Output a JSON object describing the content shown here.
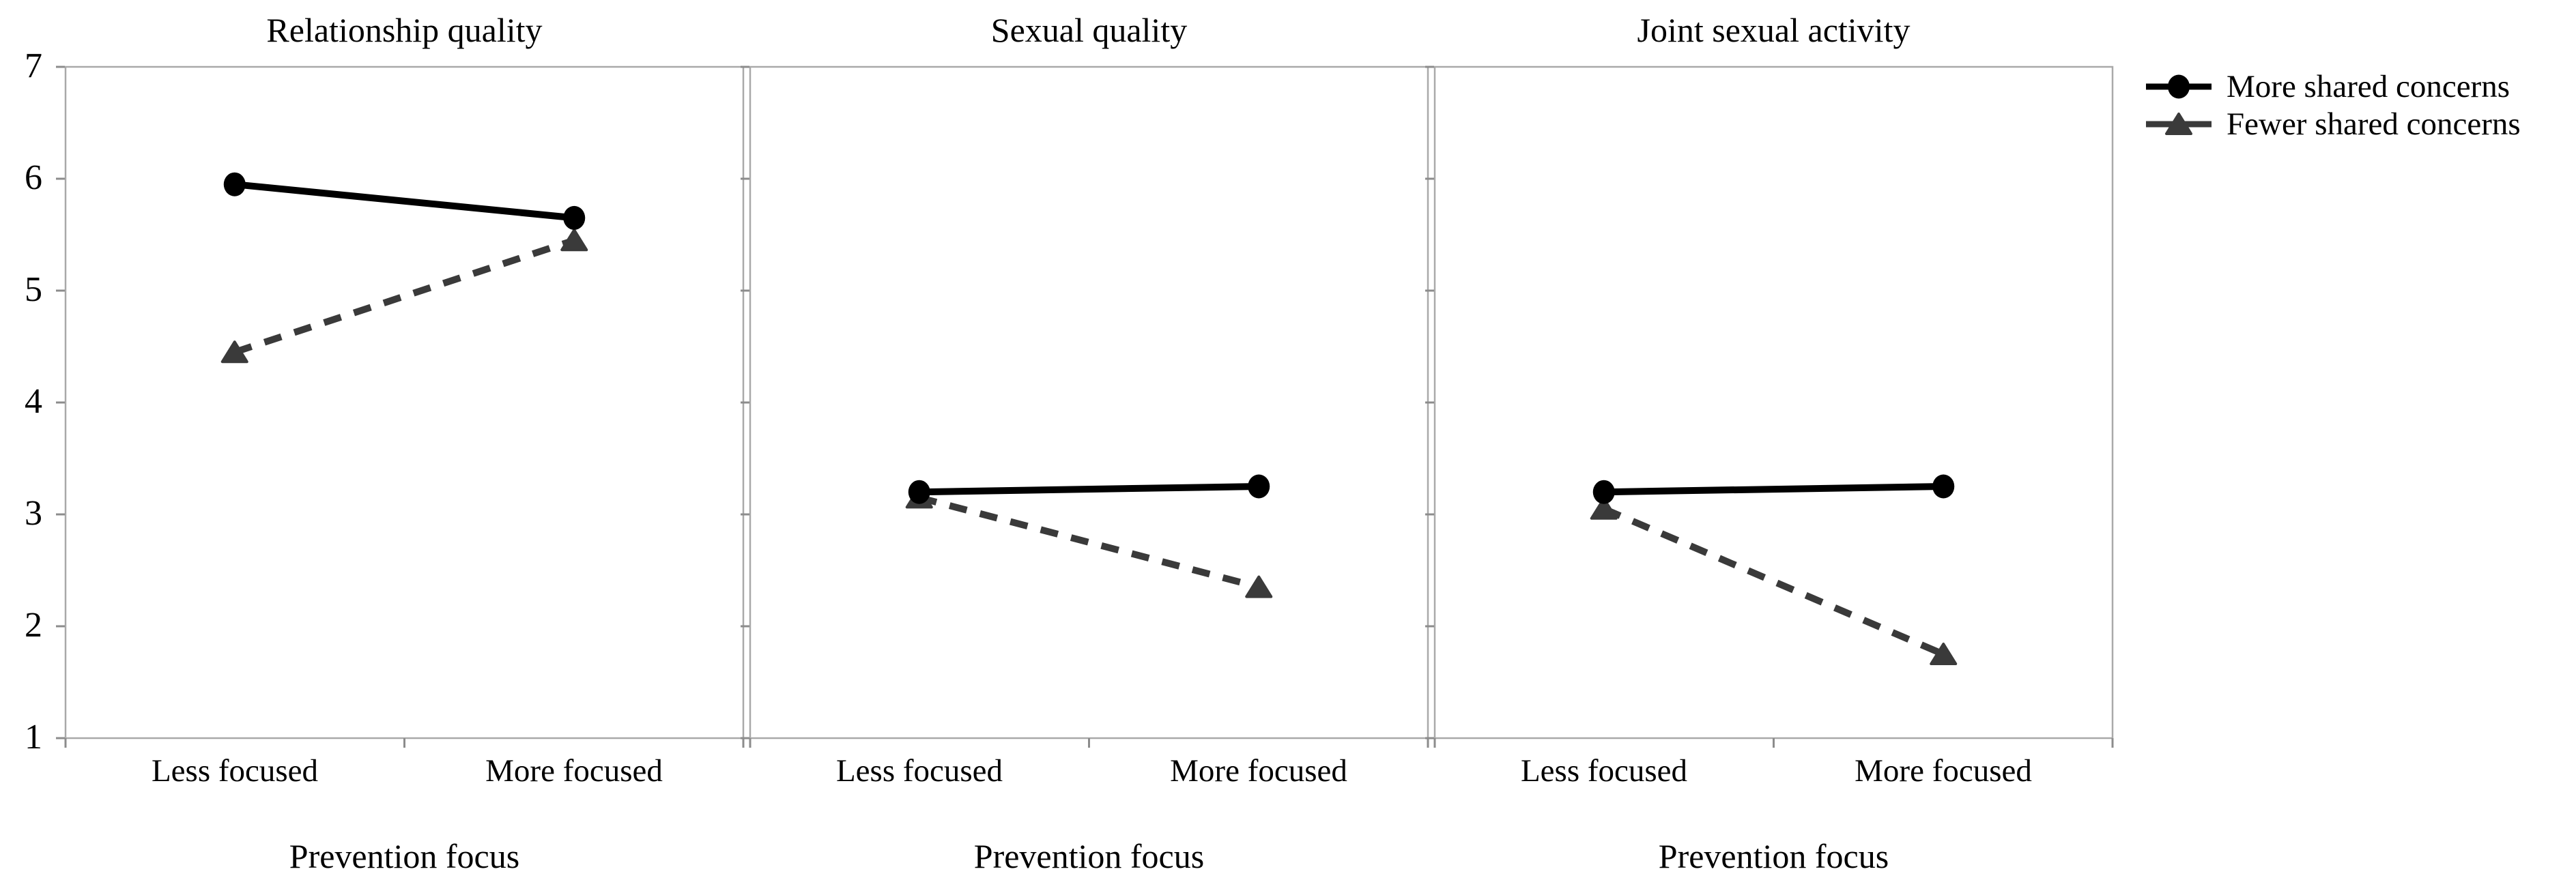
{
  "figure": {
    "y_axis": {
      "tick_labels": [
        "7",
        "6",
        "5",
        "4",
        "3",
        "2",
        "1"
      ],
      "min": 1,
      "max": 7
    },
    "legend": {
      "position": "top-right",
      "items": [
        {
          "label": "More shared concerns",
          "marker": "circle",
          "line": "solid"
        },
        {
          "label": "Fewer shared concerns",
          "marker": "triangle",
          "line": "dashed"
        }
      ]
    },
    "colors": {
      "series_primary": "#000000",
      "series_secondary": "#3a3a3a",
      "panel_border": "#a9a9a9",
      "tick": "#8c8c8c",
      "background": "#ffffff"
    }
  },
  "chart_data": [
    {
      "type": "line",
      "title": "Relationship quality",
      "x_categories": [
        "Less focused",
        "More focused"
      ],
      "xlabel": "Prevention focus",
      "ylim": [
        1,
        7
      ],
      "yticks": [
        1,
        2,
        3,
        4,
        5,
        6,
        7
      ],
      "grid": false,
      "series": [
        {
          "name": "More shared concerns",
          "marker": "circle",
          "line": "solid",
          "values": [
            5.95,
            5.65
          ]
        },
        {
          "name": "Fewer shared concerns",
          "marker": "triangle",
          "line": "dashed",
          "values": [
            4.45,
            5.45
          ]
        }
      ]
    },
    {
      "type": "line",
      "title": "Sexual quality",
      "x_categories": [
        "Less focused",
        "More focused"
      ],
      "xlabel": "Prevention focus",
      "ylim": [
        1,
        7
      ],
      "yticks": [
        1,
        2,
        3,
        4,
        5,
        6,
        7
      ],
      "grid": false,
      "series": [
        {
          "name": "More shared concerns",
          "marker": "circle",
          "line": "solid",
          "values": [
            3.2,
            3.25
          ]
        },
        {
          "name": "Fewer shared concerns",
          "marker": "triangle",
          "line": "dashed",
          "values": [
            3.15,
            2.35
          ]
        }
      ]
    },
    {
      "type": "line",
      "title": "Joint sexual activity",
      "x_categories": [
        "Less focused",
        "More focused"
      ],
      "xlabel": "Prevention focus",
      "ylim": [
        1,
        7
      ],
      "yticks": [
        1,
        2,
        3,
        4,
        5,
        6,
        7
      ],
      "grid": false,
      "series": [
        {
          "name": "More shared concerns",
          "marker": "circle",
          "line": "solid",
          "values": [
            3.2,
            3.25
          ]
        },
        {
          "name": "Fewer shared concerns",
          "marker": "triangle",
          "line": "dashed",
          "values": [
            3.05,
            1.75
          ]
        }
      ]
    }
  ]
}
